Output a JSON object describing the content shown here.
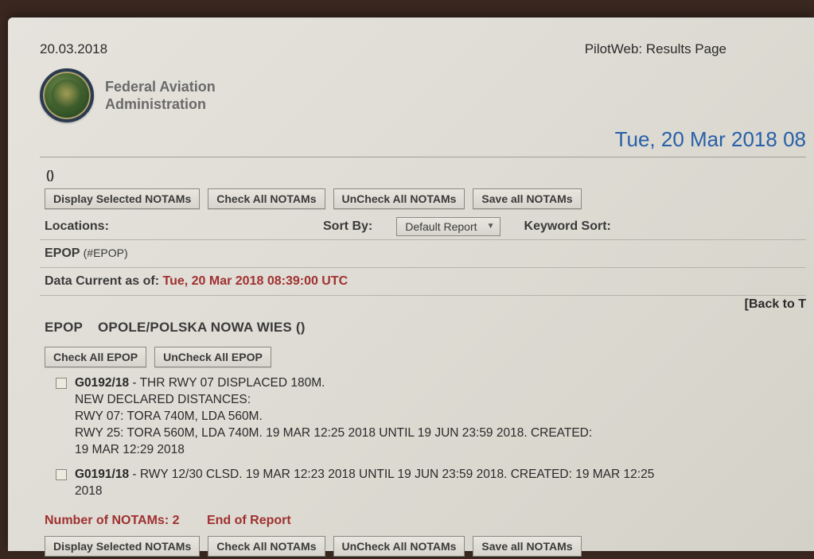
{
  "header": {
    "print_date": "20.03.2018",
    "page_title": "PilotWeb: Results Page",
    "org_line1": "Federal Aviation",
    "org_line2": "Administration",
    "formatted_datetime": "Tue, 20 Mar 2018 08"
  },
  "toolbar": {
    "parens": "()",
    "display_selected": "Display Selected NOTAMs",
    "check_all": "Check All NOTAMs",
    "uncheck_all": "UnCheck All NOTAMs",
    "save_all": "Save all NOTAMs"
  },
  "filters": {
    "locations_label": "Locations:",
    "sort_by_label": "Sort By:",
    "sort_by_value": "Default Report",
    "keyword_sort_label": "Keyword Sort:"
  },
  "location": {
    "code": "EPOP",
    "suffix": "(#EPOP)"
  },
  "data_current": {
    "label": "Data Current as of:",
    "timestamp": "Tue, 20 Mar 2018 08:39:00 UTC"
  },
  "back_link": "[Back to T",
  "airport": {
    "code": "EPOP",
    "name": "OPOLE/POLSKA NOWA WIES ()"
  },
  "airport_buttons": {
    "check_all": "Check All  EPOP",
    "uncheck_all": "UnCheck All EPOP"
  },
  "notams": [
    {
      "id": "G0192/18",
      "text": " - THR RWY 07 DISPLACED 180M.\nNEW DECLARED DISTANCES:\nRWY 07: TORA 740M, LDA 560M.\nRWY 25: TORA 560M, LDA 740M. 19 MAR 12:25 2018 UNTIL 19 JUN 23:59 2018. CREATED:\n19 MAR 12:29 2018"
    },
    {
      "id": "G0191/18",
      "text": " - RWY 12/30 CLSD. 19 MAR 12:23 2018 UNTIL 19 JUN 23:59 2018. CREATED: 19 MAR 12:25\n2018"
    }
  ],
  "summary": {
    "count_label": "Number of NOTAMs:",
    "count_value": "2",
    "end_of_report": "End of Report"
  },
  "colors": {
    "accent_red": "#a03030",
    "accent_blue": "#2860a8",
    "paper_bg": "#e0ded6",
    "text": "#3a3a3a",
    "border": "#8a8a82"
  }
}
